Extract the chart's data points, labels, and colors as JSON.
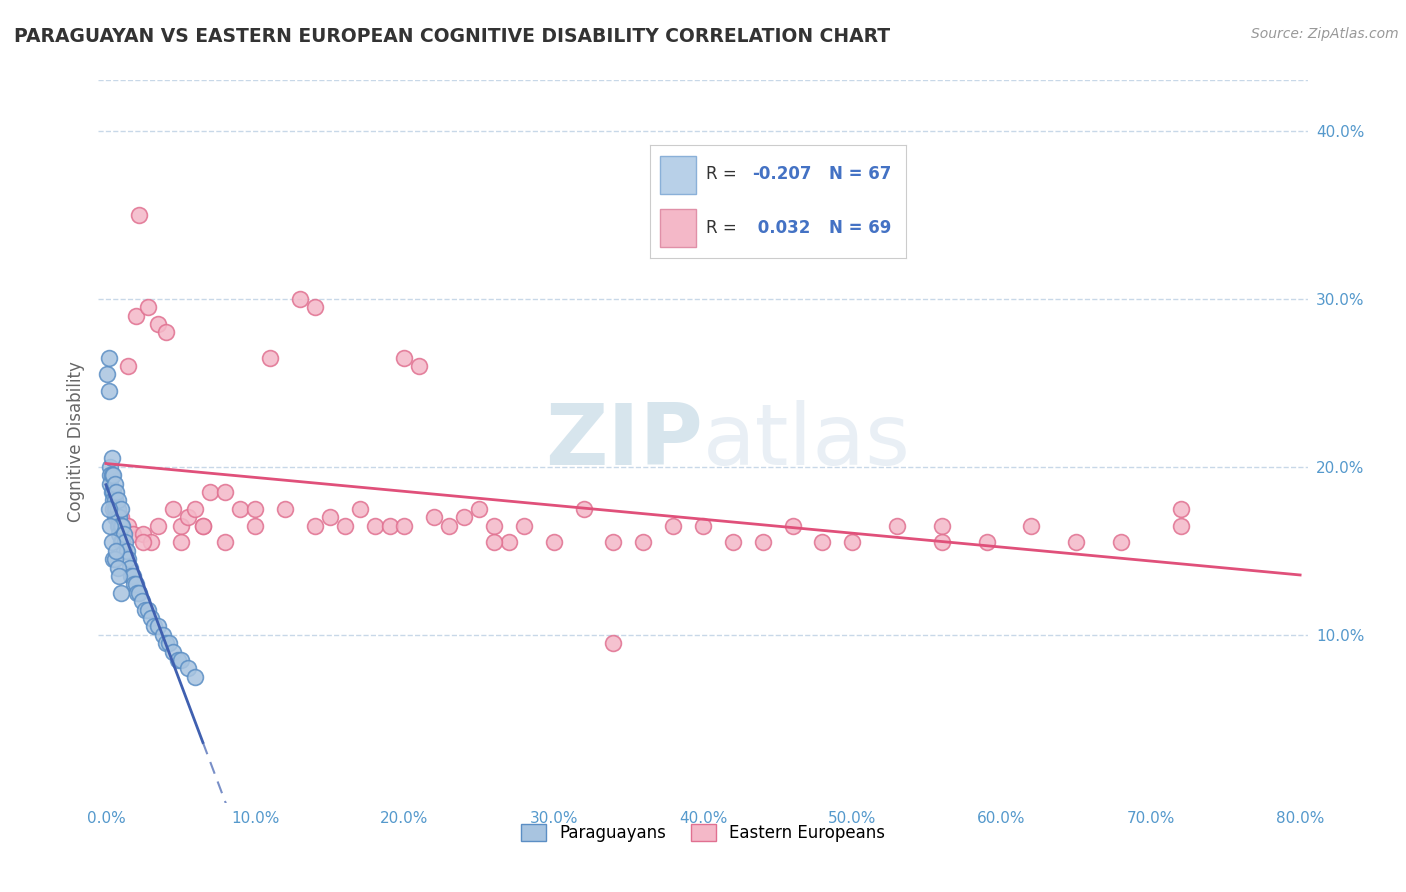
{
  "title": "PARAGUAYAN VS EASTERN EUROPEAN COGNITIVE DISABILITY CORRELATION CHART",
  "source": "Source: ZipAtlas.com",
  "ylabel": "Cognitive Disability",
  "xlim": [
    -0.005,
    0.805
  ],
  "ylim": [
    0.0,
    0.43
  ],
  "xticks": [
    0.0,
    0.1,
    0.2,
    0.3,
    0.4,
    0.5,
    0.6,
    0.7,
    0.8
  ],
  "xticklabels": [
    "0.0%",
    "10.0%",
    "20.0%",
    "30.0%",
    "40.0%",
    "50.0%",
    "60.0%",
    "70.0%",
    "80.0%"
  ],
  "yticks": [
    0.1,
    0.2,
    0.3,
    0.4
  ],
  "yticklabels": [
    "10.0%",
    "20.0%",
    "30.0%",
    "40.0%"
  ],
  "paraguayan_color": "#a8c4e0",
  "paraguayan_edge": "#5b8ec4",
  "eastern_color": "#f4b8c8",
  "eastern_edge": "#e07090",
  "paraguayan_line_color": "#4060b0",
  "eastern_line_color": "#e0507a",
  "paraguayan_R": -0.207,
  "eastern_R": 0.032,
  "paraguayan_N": 67,
  "eastern_N": 69,
  "background_color": "#ffffff",
  "grid_color": "#c8d8e8",
  "tick_color": "#5599cc",
  "legend_blue_fill": "#b8d0e8",
  "legend_pink_fill": "#f4b8c8",
  "legend_border": "#cccccc",
  "watermark_color": "#c8e0f0",
  "paraguayan_x": [
    0.001,
    0.002,
    0.002,
    0.003,
    0.003,
    0.003,
    0.004,
    0.004,
    0.004,
    0.005,
    0.005,
    0.005,
    0.005,
    0.006,
    0.006,
    0.006,
    0.006,
    0.007,
    0.007,
    0.007,
    0.008,
    0.008,
    0.008,
    0.008,
    0.009,
    0.009,
    0.009,
    0.01,
    0.01,
    0.01,
    0.011,
    0.011,
    0.012,
    0.012,
    0.013,
    0.014,
    0.015,
    0.016,
    0.017,
    0.018,
    0.019,
    0.02,
    0.021,
    0.022,
    0.024,
    0.026,
    0.028,
    0.03,
    0.032,
    0.035,
    0.038,
    0.04,
    0.042,
    0.045,
    0.048,
    0.05,
    0.055,
    0.06,
    0.002,
    0.003,
    0.004,
    0.005,
    0.006,
    0.007,
    0.008,
    0.009,
    0.01
  ],
  "paraguayan_y": [
    0.255,
    0.245,
    0.265,
    0.2,
    0.195,
    0.19,
    0.205,
    0.195,
    0.185,
    0.195,
    0.185,
    0.175,
    0.18,
    0.19,
    0.18,
    0.175,
    0.17,
    0.185,
    0.175,
    0.17,
    0.175,
    0.17,
    0.165,
    0.18,
    0.17,
    0.165,
    0.16,
    0.175,
    0.165,
    0.155,
    0.165,
    0.155,
    0.16,
    0.15,
    0.155,
    0.15,
    0.145,
    0.14,
    0.135,
    0.135,
    0.13,
    0.13,
    0.125,
    0.125,
    0.12,
    0.115,
    0.115,
    0.11,
    0.105,
    0.105,
    0.1,
    0.095,
    0.095,
    0.09,
    0.085,
    0.085,
    0.08,
    0.075,
    0.175,
    0.165,
    0.155,
    0.145,
    0.145,
    0.15,
    0.14,
    0.135,
    0.125
  ],
  "eastern_x": [
    0.005,
    0.01,
    0.015,
    0.018,
    0.02,
    0.022,
    0.025,
    0.028,
    0.03,
    0.035,
    0.04,
    0.045,
    0.05,
    0.055,
    0.06,
    0.065,
    0.07,
    0.08,
    0.09,
    0.1,
    0.11,
    0.12,
    0.13,
    0.14,
    0.15,
    0.16,
    0.17,
    0.18,
    0.19,
    0.2,
    0.21,
    0.22,
    0.23,
    0.24,
    0.25,
    0.26,
    0.27,
    0.28,
    0.3,
    0.32,
    0.34,
    0.36,
    0.38,
    0.4,
    0.42,
    0.44,
    0.46,
    0.48,
    0.5,
    0.53,
    0.56,
    0.59,
    0.62,
    0.65,
    0.68,
    0.72,
    0.015,
    0.025,
    0.035,
    0.05,
    0.065,
    0.08,
    0.1,
    0.14,
    0.2,
    0.26,
    0.34,
    0.56,
    0.72
  ],
  "eastern_y": [
    0.175,
    0.17,
    0.165,
    0.16,
    0.29,
    0.35,
    0.16,
    0.295,
    0.155,
    0.285,
    0.28,
    0.175,
    0.165,
    0.17,
    0.175,
    0.165,
    0.185,
    0.185,
    0.175,
    0.165,
    0.265,
    0.175,
    0.3,
    0.295,
    0.17,
    0.165,
    0.175,
    0.165,
    0.165,
    0.265,
    0.26,
    0.17,
    0.165,
    0.17,
    0.175,
    0.165,
    0.155,
    0.165,
    0.155,
    0.175,
    0.155,
    0.155,
    0.165,
    0.165,
    0.155,
    0.155,
    0.165,
    0.155,
    0.155,
    0.165,
    0.165,
    0.155,
    0.165,
    0.155,
    0.155,
    0.175,
    0.26,
    0.155,
    0.165,
    0.155,
    0.165,
    0.155,
    0.175,
    0.165,
    0.165,
    0.155,
    0.095,
    0.155,
    0.165
  ]
}
